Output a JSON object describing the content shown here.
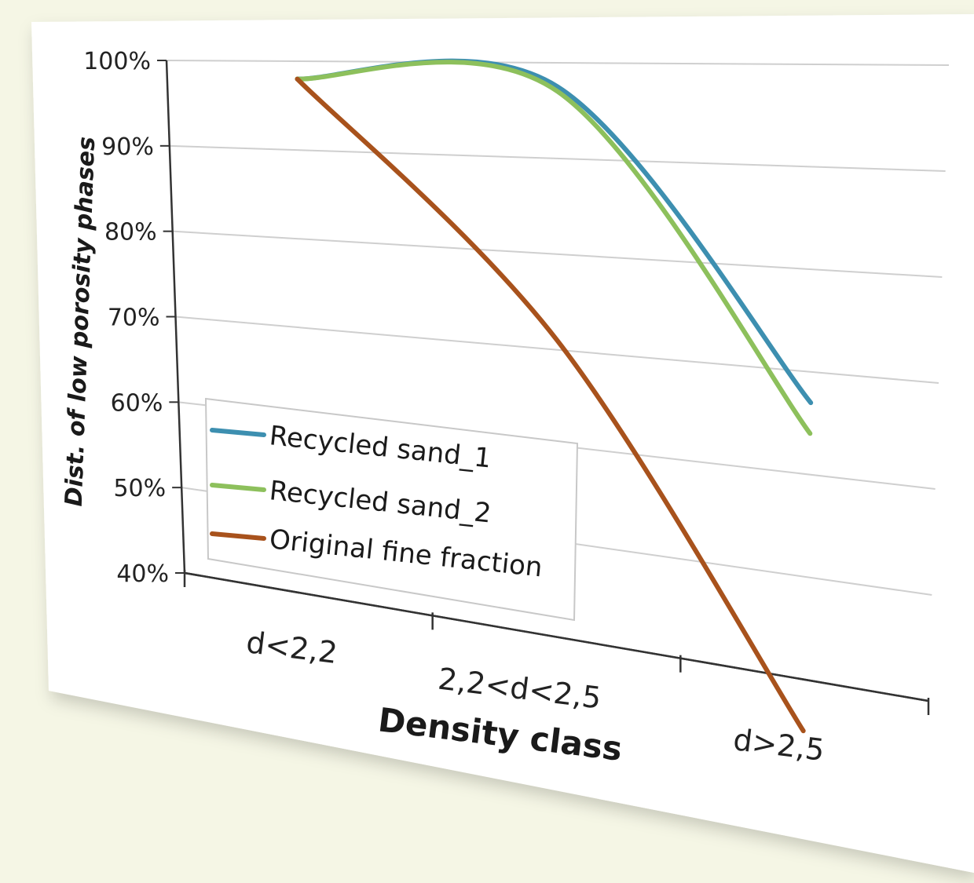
{
  "chart_data": {
    "type": "line",
    "categories": [
      "d<2,2",
      "2,2<d<2,5",
      "d>2,5"
    ],
    "series": [
      {
        "name": "Recycled sand_1",
        "values": [
          98,
          97.5,
          67
        ],
        "color": "#3d8fb0"
      },
      {
        "name": "Recycled sand_2",
        "values": [
          98,
          97,
          64
        ],
        "color": "#8dc05c"
      },
      {
        "name": "Original fine fraction",
        "values": [
          98,
          71,
          35
        ],
        "color": "#a8521c"
      }
    ],
    "ylabel": "Dist. of low porosity phases",
    "xlabel": "Density class",
    "ylim": [
      40,
      100
    ],
    "yticks": [
      "40%",
      "50%",
      "60%",
      "70%",
      "80%",
      "90%",
      "100%"
    ],
    "grid": "horizontal",
    "legend": "bottom-left",
    "background": "#ffffff",
    "page_background": "#f5f6e5"
  }
}
